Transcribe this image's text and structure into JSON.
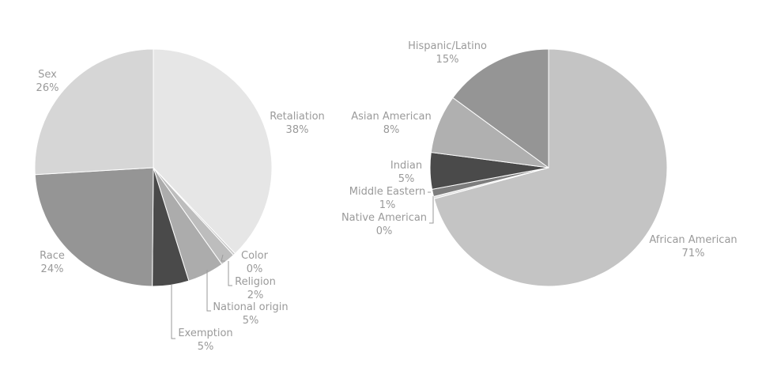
{
  "chart_data": [
    {
      "type": "pie",
      "title": "",
      "slices": [
        {
          "label": "Retaliation",
          "pct_label": "38%",
          "value": 38,
          "color": "#e6e6e6"
        },
        {
          "label": "Color",
          "pct_label": "0%",
          "value": 0.3,
          "color": "#c8c8c8"
        },
        {
          "label": "Religion",
          "pct_label": "2%",
          "value": 2,
          "color": "#bdbdbd"
        },
        {
          "label": "National origin",
          "pct_label": "5%",
          "value": 5,
          "color": "#acacac"
        },
        {
          "label": "Exemption",
          "pct_label": "5%",
          "value": 5,
          "color": "#4a4a4a"
        },
        {
          "label": "Race",
          "pct_label": "24%",
          "value": 24,
          "color": "#959595"
        },
        {
          "label": "Sex",
          "pct_label": "26%",
          "value": 26,
          "color": "#d6d6d6"
        }
      ]
    },
    {
      "type": "pie",
      "title": "",
      "slices": [
        {
          "label": "African American",
          "pct_label": "71%",
          "value": 71,
          "color": "#c4c4c4"
        },
        {
          "label": "Native American",
          "pct_label": "0%",
          "value": 0.3,
          "color": "#dcdcdc"
        },
        {
          "label": "Middle Eastern",
          "pct_label": "1%",
          "value": 1,
          "color": "#7d7d7d"
        },
        {
          "label": "Indian",
          "pct_label": "5%",
          "value": 5,
          "color": "#4a4a4a"
        },
        {
          "label": "Asian American",
          "pct_label": "8%",
          "value": 8,
          "color": "#b0b0b0"
        },
        {
          "label": "Hispanic/Latino",
          "pct_label": "15%",
          "value": 15,
          "color": "#959595"
        }
      ]
    }
  ]
}
